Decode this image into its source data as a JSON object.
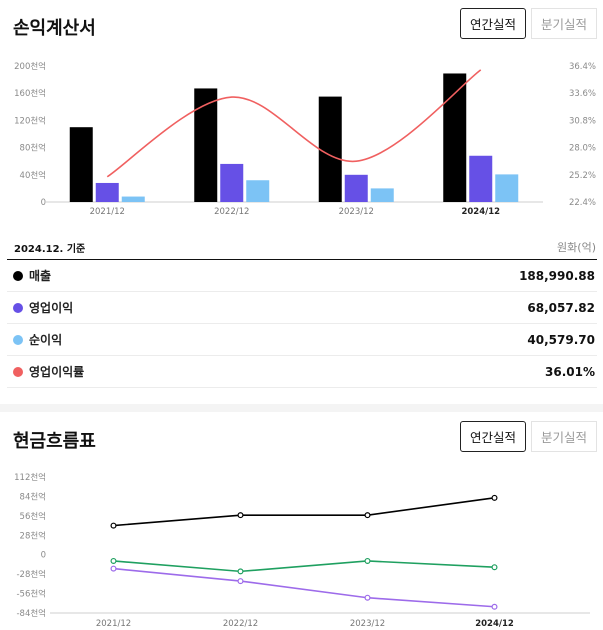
{
  "income": {
    "title": "손익계산서",
    "tabs": [
      {
        "label": "연간실적",
        "active": true
      },
      {
        "label": "분기실적",
        "active": false
      }
    ],
    "basis": "2024.12. 기준",
    "unit": "원화(억)",
    "rows": [
      {
        "label": "매출",
        "value": "188,990.88",
        "color": "#000000"
      },
      {
        "label": "영업이익",
        "value": "68,057.82",
        "color": "#6650e6"
      },
      {
        "label": "순이익",
        "value": "40,579.70",
        "color": "#7cc3f5"
      },
      {
        "label": "영업이익률",
        "value": "36.01%",
        "color": "#f06060"
      }
    ]
  },
  "cashflow": {
    "title": "현금흐름표",
    "tabs": [
      {
        "label": "연간실적",
        "active": true
      },
      {
        "label": "분기실적",
        "active": false
      }
    ]
  },
  "chart_data": [
    {
      "type": "bar",
      "categories": [
        "2021/12",
        "2022/12",
        "2023/12",
        "2024/12"
      ],
      "highlight_category": "2024/12",
      "y_ticks": [
        "0",
        "40천억",
        "80천억",
        "120천억",
        "160천억",
        "200천억"
      ],
      "ylim": [
        0,
        200000
      ],
      "y2_ticks": [
        "22.4%",
        "25.2%",
        "28.0%",
        "30.8%",
        "33.6%",
        "36.4%"
      ],
      "y2lim": [
        22.4,
        36.4
      ],
      "series": [
        {
          "name": "매출",
          "color": "#000000",
          "values": [
            110000,
            167000,
            155000,
            189000
          ]
        },
        {
          "name": "영업이익",
          "color": "#6650e6",
          "values": [
            28000,
            56000,
            40000,
            68000
          ]
        },
        {
          "name": "순이익",
          "color": "#7cc3f5",
          "values": [
            8000,
            32000,
            20000,
            40600
          ]
        }
      ],
      "line_series": {
        "name": "영업이익률",
        "color": "#f06060",
        "axis": "right",
        "values": [
          25.0,
          33.2,
          26.6,
          36.0
        ]
      }
    },
    {
      "type": "line",
      "categories": [
        "2021/12",
        "2022/12",
        "2023/12",
        "2024/12"
      ],
      "highlight_category": "2024/12",
      "y_ticks": [
        "-84천억",
        "-56천억",
        "-28천억",
        "0",
        "28천억",
        "56천억",
        "84천억",
        "112천억"
      ],
      "ylim": [
        -84000,
        112000
      ],
      "series": [
        {
          "color": "#000000",
          "values": [
            42000,
            57000,
            57000,
            82000
          ]
        },
        {
          "color": "#1fa060",
          "values": [
            -9000,
            -24000,
            -9000,
            -18000
          ]
        },
        {
          "color": "#9d6bea",
          "values": [
            -20000,
            -38000,
            -62000,
            -75000
          ]
        }
      ]
    }
  ]
}
